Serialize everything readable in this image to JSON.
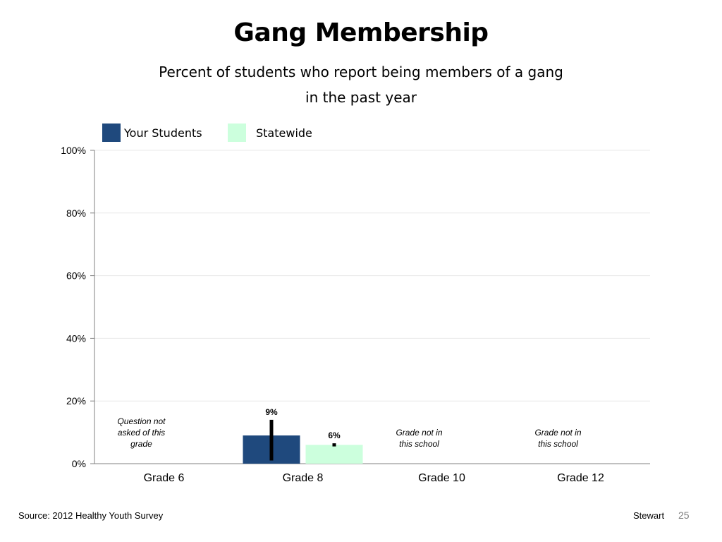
{
  "slide": {
    "title": "Gang Membership",
    "subtitle_line1": "Percent of students who report being members of a gang",
    "subtitle_line2": "in the past year",
    "source": "Source: 2012 Healthy Youth Survey",
    "author": "Stewart",
    "page_number": "25"
  },
  "chart_data": {
    "type": "bar",
    "categories": [
      "Grade 6",
      "Grade 8",
      "Grade 10",
      "Grade 12"
    ],
    "series": [
      {
        "name": "Your Students",
        "color": "#1f497d",
        "values": [
          null,
          9,
          null,
          null
        ],
        "labels": [
          "",
          "9%",
          "",
          ""
        ],
        "error_low": [
          null,
          1,
          null,
          null
        ],
        "error_high": [
          null,
          14,
          null,
          null
        ]
      },
      {
        "name": "Statewide",
        "color": "#ccffdd",
        "values": [
          null,
          6,
          null,
          null
        ],
        "labels": [
          "",
          "6%",
          "",
          ""
        ],
        "error_low": [
          null,
          5.5,
          null,
          null
        ],
        "error_high": [
          null,
          6.5,
          null,
          null
        ]
      }
    ],
    "ylim": [
      0,
      100
    ],
    "yticks": [
      0,
      20,
      40,
      60,
      80,
      100
    ],
    "ytick_labels": [
      "0%",
      "20%",
      "40%",
      "60%",
      "80%",
      "100%"
    ],
    "grid": true,
    "legend_position": "top-left",
    "annotations": [
      {
        "category": "Grade 6",
        "lines": [
          "Question not",
          "asked of this",
          "grade"
        ]
      },
      {
        "category": "Grade 10",
        "lines": [
          "Grade not in",
          "this school"
        ]
      },
      {
        "category": "Grade 12",
        "lines": [
          "Grade not in",
          "this school"
        ]
      }
    ]
  }
}
